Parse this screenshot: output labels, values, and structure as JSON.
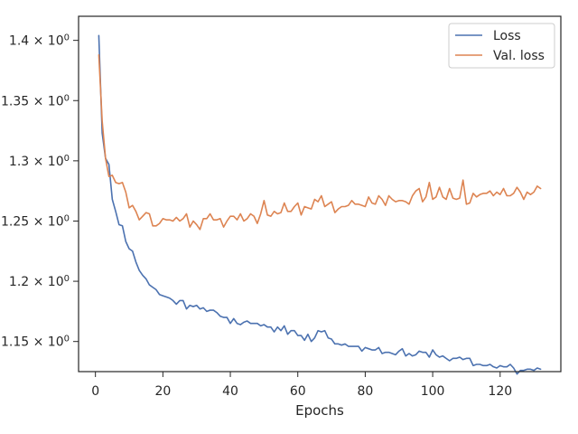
{
  "chart_data": {
    "type": "line",
    "title": "",
    "xlabel": "Epochs",
    "ylabel": "",
    "xlim": [
      -5,
      138
    ],
    "ylim": [
      1.125,
      1.42
    ],
    "grid": false,
    "legend_position": "top-right",
    "x_ticks": [
      {
        "value": 0,
        "label": "0"
      },
      {
        "value": 20,
        "label": "20"
      },
      {
        "value": 40,
        "label": "40"
      },
      {
        "value": 60,
        "label": "60"
      },
      {
        "value": 80,
        "label": "80"
      },
      {
        "value": 100,
        "label": "100"
      },
      {
        "value": 120,
        "label": "120"
      }
    ],
    "y_ticks": [
      {
        "value": 1.15,
        "base": "1.15",
        "exp": "0"
      },
      {
        "value": 1.2,
        "base": "1.2",
        "exp": "0"
      },
      {
        "value": 1.25,
        "base": "1.25",
        "exp": "0"
      },
      {
        "value": 1.3,
        "base": "1.3",
        "exp": "0"
      },
      {
        "value": 1.35,
        "base": "1.35",
        "exp": "0"
      },
      {
        "value": 1.4,
        "base": "1.4",
        "exp": "0"
      }
    ],
    "y_tick_multiplier": "× 10",
    "series": [
      {
        "name": "Loss",
        "color": "#4c72b0",
        "x": [
          1,
          2,
          3,
          4,
          5,
          6,
          7,
          8,
          9,
          10,
          11,
          12,
          13,
          14,
          15,
          16,
          17,
          18,
          19,
          20,
          21,
          22,
          23,
          24,
          25,
          26,
          27,
          28,
          29,
          30,
          31,
          32,
          33,
          34,
          35,
          36,
          37,
          38,
          39,
          40,
          41,
          42,
          43,
          44,
          45,
          46,
          47,
          48,
          49,
          50,
          51,
          52,
          53,
          54,
          55,
          56,
          57,
          58,
          59,
          60,
          61,
          62,
          63,
          64,
          65,
          66,
          67,
          68,
          69,
          70,
          71,
          72,
          73,
          74,
          75,
          76,
          77,
          78,
          79,
          80,
          81,
          82,
          83,
          84,
          85,
          86,
          87,
          88,
          89,
          90,
          91,
          92,
          93,
          94,
          95,
          96,
          97,
          98,
          99,
          100,
          101,
          102,
          103,
          104,
          105,
          106,
          107,
          108,
          109,
          110,
          111,
          112,
          113,
          114,
          115,
          116,
          117,
          118,
          119,
          120,
          121,
          122,
          123,
          124,
          125,
          126,
          127,
          128,
          129,
          130,
          131,
          132
        ],
        "values": [
          1.404,
          1.323,
          1.302,
          1.297,
          1.268,
          1.258,
          1.247,
          1.246,
          1.233,
          1.227,
          1.225,
          1.216,
          1.209,
          1.205,
          1.202,
          1.197,
          1.195,
          1.193,
          1.189,
          1.188,
          1.187,
          1.186,
          1.184,
          1.181,
          1.184,
          1.184,
          1.177,
          1.18,
          1.179,
          1.18,
          1.177,
          1.178,
          1.175,
          1.176,
          1.176,
          1.174,
          1.171,
          1.17,
          1.17,
          1.165,
          1.169,
          1.165,
          1.164,
          1.166,
          1.167,
          1.165,
          1.165,
          1.165,
          1.163,
          1.164,
          1.162,
          1.162,
          1.158,
          1.162,
          1.159,
          1.163,
          1.156,
          1.159,
          1.159,
          1.155,
          1.155,
          1.151,
          1.156,
          1.15,
          1.153,
          1.159,
          1.158,
          1.159,
          1.153,
          1.152,
          1.148,
          1.148,
          1.147,
          1.148,
          1.146,
          1.146,
          1.146,
          1.146,
          1.142,
          1.145,
          1.144,
          1.143,
          1.143,
          1.145,
          1.14,
          1.141,
          1.141,
          1.14,
          1.139,
          1.142,
          1.144,
          1.138,
          1.14,
          1.138,
          1.139,
          1.142,
          1.141,
          1.141,
          1.137,
          1.143,
          1.139,
          1.137,
          1.138,
          1.136,
          1.134,
          1.136,
          1.136,
          1.137,
          1.135,
          1.136,
          1.136,
          1.13,
          1.131,
          1.131,
          1.13,
          1.13,
          1.131,
          1.129,
          1.128,
          1.13,
          1.129,
          1.129,
          1.131,
          1.128,
          1.123,
          1.126,
          1.126,
          1.127,
          1.127,
          1.126,
          1.128,
          1.127
        ]
      },
      {
        "name": "Val. loss",
        "color": "#dd8452",
        "x": [
          1,
          2,
          3,
          4,
          5,
          6,
          7,
          8,
          9,
          10,
          11,
          12,
          13,
          14,
          15,
          16,
          17,
          18,
          19,
          20,
          21,
          22,
          23,
          24,
          25,
          26,
          27,
          28,
          29,
          30,
          31,
          32,
          33,
          34,
          35,
          36,
          37,
          38,
          39,
          40,
          41,
          42,
          43,
          44,
          45,
          46,
          47,
          48,
          49,
          50,
          51,
          52,
          53,
          54,
          55,
          56,
          57,
          58,
          59,
          60,
          61,
          62,
          63,
          64,
          65,
          66,
          67,
          68,
          69,
          70,
          71,
          72,
          73,
          74,
          75,
          76,
          77,
          78,
          79,
          80,
          81,
          82,
          83,
          84,
          85,
          86,
          87,
          88,
          89,
          90,
          91,
          92,
          93,
          94,
          95,
          96,
          97,
          98,
          99,
          100,
          101,
          102,
          103,
          104,
          105,
          106,
          107,
          108,
          109,
          110,
          111,
          112,
          113,
          114,
          115,
          116,
          117,
          118,
          119,
          120,
          121,
          122,
          123,
          124,
          125,
          126,
          127,
          128,
          129,
          130,
          131,
          132
        ],
        "values": [
          1.388,
          1.333,
          1.302,
          1.287,
          1.288,
          1.282,
          1.281,
          1.282,
          1.274,
          1.261,
          1.263,
          1.258,
          1.251,
          1.254,
          1.257,
          1.256,
          1.246,
          1.246,
          1.248,
          1.252,
          1.251,
          1.251,
          1.25,
          1.253,
          1.25,
          1.252,
          1.256,
          1.245,
          1.25,
          1.247,
          1.243,
          1.252,
          1.252,
          1.256,
          1.251,
          1.251,
          1.252,
          1.245,
          1.25,
          1.254,
          1.254,
          1.251,
          1.256,
          1.25,
          1.252,
          1.256,
          1.254,
          1.248,
          1.256,
          1.267,
          1.255,
          1.254,
          1.258,
          1.256,
          1.257,
          1.265,
          1.258,
          1.258,
          1.262,
          1.265,
          1.255,
          1.262,
          1.261,
          1.26,
          1.268,
          1.266,
          1.271,
          1.262,
          1.264,
          1.266,
          1.257,
          1.26,
          1.262,
          1.262,
          1.263,
          1.267,
          1.264,
          1.264,
          1.263,
          1.262,
          1.27,
          1.265,
          1.264,
          1.271,
          1.268,
          1.263,
          1.271,
          1.268,
          1.266,
          1.267,
          1.267,
          1.266,
          1.264,
          1.271,
          1.275,
          1.277,
          1.266,
          1.27,
          1.282,
          1.268,
          1.27,
          1.278,
          1.27,
          1.268,
          1.277,
          1.269,
          1.268,
          1.269,
          1.284,
          1.264,
          1.265,
          1.273,
          1.27,
          1.272,
          1.273,
          1.273,
          1.275,
          1.271,
          1.274,
          1.272,
          1.277,
          1.271,
          1.271,
          1.273,
          1.278,
          1.274,
          1.268,
          1.274,
          1.272,
          1.274,
          1.279,
          1.277
        ]
      }
    ]
  }
}
